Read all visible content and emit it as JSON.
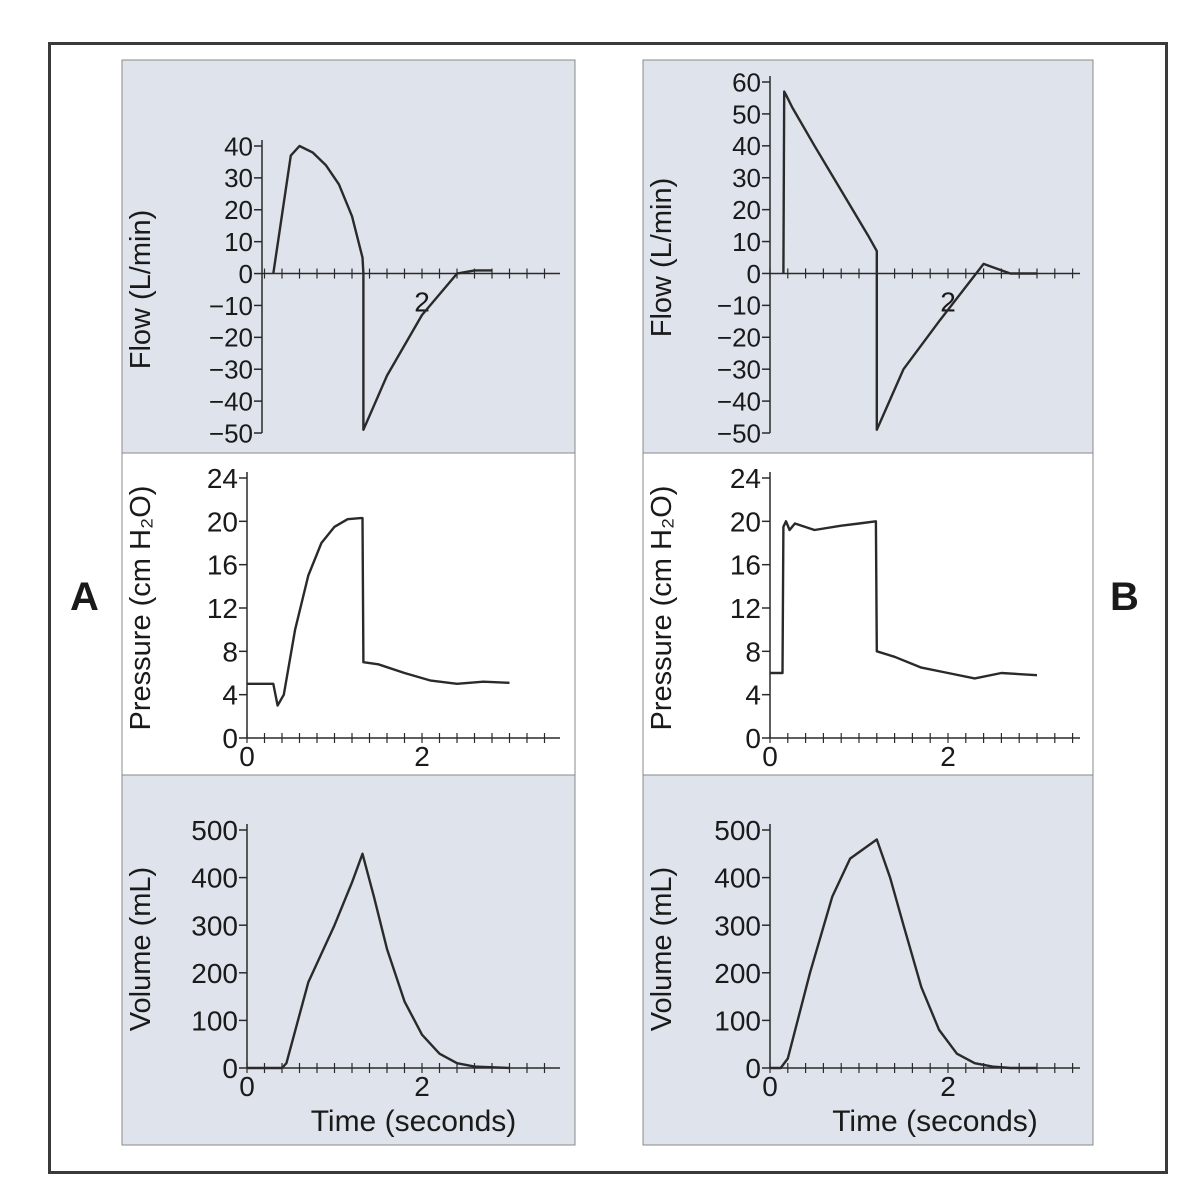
{
  "panel_labels": [
    "A",
    "B"
  ],
  "xlabel": "Time (seconds)",
  "colors": {
    "shaded": "#dfe4ec",
    "white": "#ffffff",
    "line": "#2a2a2a"
  },
  "chart_data": [
    {
      "panel": "A",
      "type": "line",
      "ylabel": "Flow (L/min)",
      "xlabel": "",
      "ylim": [
        -50,
        40
      ],
      "yticks": [
        40,
        30,
        20,
        10,
        0,
        -10,
        -20,
        -30,
        -40,
        -50
      ],
      "xticks": [
        2
      ],
      "x": [
        0.3,
        0.5,
        0.6,
        0.75,
        0.9,
        1.05,
        1.2,
        1.32,
        1.33,
        1.33,
        1.6,
        2.0,
        2.4,
        2.6,
        2.8
      ],
      "y": [
        0,
        37,
        40,
        38,
        34,
        28,
        18,
        5,
        0,
        -49,
        -32,
        -13,
        0,
        1,
        1
      ]
    },
    {
      "panel": "A",
      "type": "line",
      "ylabel": "Pressure (cm H₂O)",
      "xlabel": "",
      "ylim": [
        0,
        24
      ],
      "yticks": [
        24,
        20,
        16,
        12,
        8,
        4,
        0
      ],
      "xticks": [
        0,
        2
      ],
      "x": [
        0,
        0.3,
        0.35,
        0.42,
        0.55,
        0.7,
        0.85,
        1.0,
        1.15,
        1.3,
        1.32,
        1.33,
        1.5,
        1.8,
        2.1,
        2.4,
        2.7,
        3.0
      ],
      "y": [
        5,
        5,
        3,
        4,
        10,
        15,
        18,
        19.5,
        20.2,
        20.3,
        20.3,
        7,
        6.8,
        6,
        5.3,
        5,
        5.2,
        5.1
      ]
    },
    {
      "panel": "A",
      "type": "line",
      "ylabel": "Volume (mL)",
      "xlabel": "Time (seconds)",
      "ylim": [
        0,
        500
      ],
      "yticks": [
        500,
        400,
        300,
        200,
        100,
        0
      ],
      "xticks": [
        0,
        2
      ],
      "x": [
        0,
        0.4,
        0.45,
        0.7,
        1.0,
        1.2,
        1.32,
        1.45,
        1.6,
        1.8,
        2.0,
        2.2,
        2.4,
        2.6,
        3.0
      ],
      "y": [
        0,
        0,
        10,
        180,
        300,
        390,
        450,
        360,
        250,
        140,
        70,
        30,
        10,
        3,
        0
      ]
    },
    {
      "panel": "B",
      "type": "line",
      "ylabel": "Flow (L/min)",
      "xlabel": "",
      "ylim": [
        -50,
        60
      ],
      "yticks": [
        60,
        50,
        40,
        30,
        20,
        10,
        0,
        -10,
        -20,
        -30,
        -40,
        -50
      ],
      "xticks": [
        2
      ],
      "x": [
        0.15,
        0.16,
        0.18,
        0.25,
        0.5,
        0.8,
        1.1,
        1.2,
        1.2,
        1.5,
        1.9,
        2.4,
        2.5,
        2.7,
        3.0
      ],
      "y": [
        0,
        57,
        56,
        52,
        40,
        26,
        12,
        7,
        -49,
        -30,
        -15,
        3,
        2,
        0,
        0
      ]
    },
    {
      "panel": "B",
      "type": "line",
      "ylabel": "Pressure (cm H₂O)",
      "xlabel": "",
      "ylim": [
        0,
        24
      ],
      "yticks": [
        24,
        20,
        16,
        12,
        8,
        4,
        0
      ],
      "xticks": [
        0,
        2
      ],
      "x": [
        0,
        0.14,
        0.15,
        0.18,
        0.22,
        0.28,
        0.5,
        0.8,
        1.0,
        1.19,
        1.2,
        1.4,
        1.7,
        2.0,
        2.3,
        2.6,
        3.0
      ],
      "y": [
        6,
        6,
        19.5,
        20,
        19.2,
        19.8,
        19.2,
        19.6,
        19.8,
        20,
        8,
        7.5,
        6.5,
        6,
        5.5,
        6,
        5.8
      ]
    },
    {
      "panel": "B",
      "type": "line",
      "ylabel": "Volume (mL)",
      "xlabel": "Time (seconds)",
      "ylim": [
        0,
        500
      ],
      "yticks": [
        500,
        400,
        300,
        200,
        100,
        0
      ],
      "xticks": [
        0,
        2
      ],
      "x": [
        0,
        0.12,
        0.2,
        0.45,
        0.7,
        0.9,
        1.05,
        1.2,
        1.35,
        1.5,
        1.7,
        1.9,
        2.1,
        2.3,
        2.5,
        2.7,
        3.0
      ],
      "y": [
        0,
        0,
        20,
        200,
        360,
        440,
        460,
        480,
        400,
        300,
        170,
        80,
        30,
        10,
        3,
        0,
        0
      ]
    }
  ]
}
